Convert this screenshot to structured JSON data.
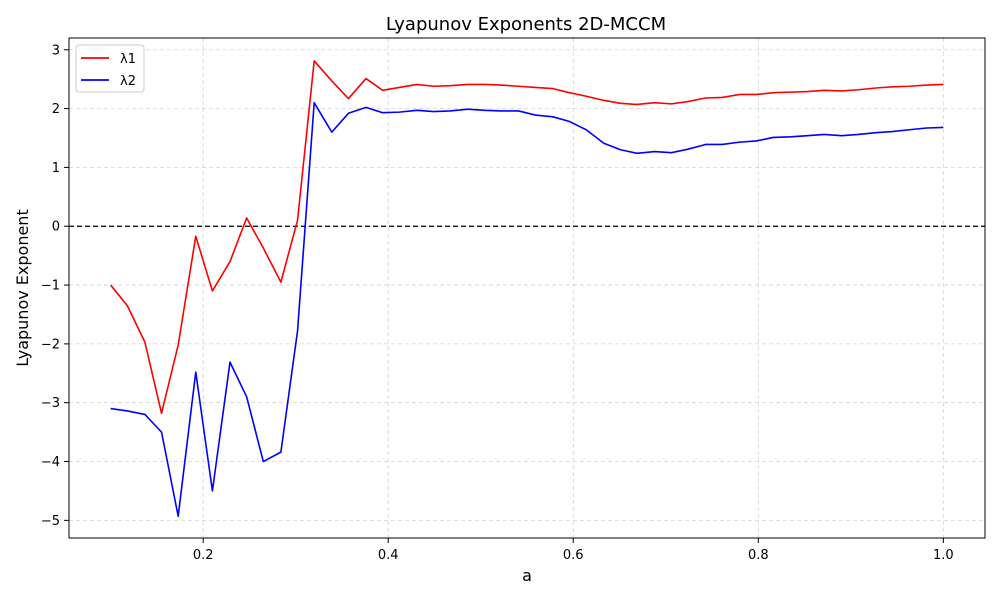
{
  "chart_data": {
    "type": "line",
    "title": "Lyapunov Exponents 2D-MCCM",
    "xlabel": "a",
    "ylabel": "Lyapunov Exponent",
    "xlim": [
      0.055,
      1.045
    ],
    "ylim": [
      -5.3,
      3.2
    ],
    "xticks": [
      0.2,
      0.4,
      0.6,
      0.8,
      1.0
    ],
    "xtick_labels": [
      "0.2",
      "0.4",
      "0.6",
      "0.8",
      "1.0"
    ],
    "yticks": [
      -5,
      -4,
      -3,
      -2,
      -1,
      0,
      1,
      2,
      3
    ],
    "ytick_labels": [
      "−5",
      "−4",
      "−3",
      "−2",
      "−1",
      "0",
      "1",
      "2",
      "3"
    ],
    "grid": true,
    "reference_line": {
      "y": 0,
      "style": "dashed",
      "color": "#000000"
    },
    "legend": {
      "position": "top-left"
    },
    "x": [
      0.1,
      0.118,
      0.137,
      0.155,
      0.173,
      0.192,
      0.21,
      0.229,
      0.247,
      0.265,
      0.284,
      0.302,
      0.32,
      0.339,
      0.357,
      0.376,
      0.394,
      0.412,
      0.431,
      0.449,
      0.467,
      0.486,
      0.504,
      0.522,
      0.541,
      0.559,
      0.578,
      0.596,
      0.614,
      0.633,
      0.651,
      0.669,
      0.688,
      0.706,
      0.724,
      0.743,
      0.761,
      0.78,
      0.798,
      0.816,
      0.835,
      0.853,
      0.871,
      0.89,
      0.908,
      0.927,
      0.945,
      0.963,
      0.982,
      1.0
    ],
    "series": [
      {
        "name": "λ1",
        "color": "#ff0000",
        "values": [
          -1.0,
          -1.35,
          -1.97,
          -3.18,
          -2.02,
          -0.17,
          -1.1,
          -0.6,
          0.14,
          -0.37,
          -0.95,
          0.1,
          2.81,
          2.47,
          2.17,
          2.51,
          2.31,
          2.36,
          2.41,
          2.38,
          2.39,
          2.41,
          2.41,
          2.4,
          2.38,
          2.36,
          2.34,
          2.27,
          2.21,
          2.14,
          2.09,
          2.07,
          2.1,
          2.08,
          2.12,
          2.18,
          2.19,
          2.24,
          2.24,
          2.27,
          2.28,
          2.29,
          2.31,
          2.3,
          2.32,
          2.35,
          2.37,
          2.38,
          2.4,
          2.41
        ]
      },
      {
        "name": "λ2",
        "color": "#0000ff",
        "values": [
          -3.1,
          -3.14,
          -3.2,
          -3.5,
          -4.93,
          -2.48,
          -4.5,
          -2.31,
          -2.9,
          -4.0,
          -3.84,
          -1.78,
          2.1,
          1.6,
          1.92,
          2.02,
          1.93,
          1.94,
          1.97,
          1.95,
          1.96,
          1.99,
          1.97,
          1.96,
          1.96,
          1.89,
          1.86,
          1.78,
          1.64,
          1.41,
          1.3,
          1.24,
          1.27,
          1.25,
          1.31,
          1.39,
          1.39,
          1.43,
          1.45,
          1.51,
          1.52,
          1.54,
          1.56,
          1.54,
          1.56,
          1.59,
          1.61,
          1.64,
          1.67,
          1.68
        ]
      }
    ]
  }
}
